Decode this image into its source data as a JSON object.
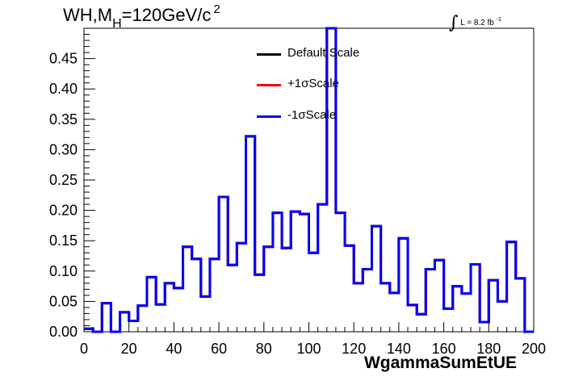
{
  "title": {
    "main": "WH,M",
    "sub": "H",
    "rest": "=120GeV/c",
    "sup": "2"
  },
  "lumi": {
    "integral": "∫",
    "text": "L = 8.2 fb",
    "sup": "-1"
  },
  "chart_data": {
    "type": "step-histogram",
    "xlabel": "WgammaSumEtUE",
    "ylabel": "",
    "xlim": [
      0,
      200
    ],
    "ylim": [
      0,
      0.5
    ],
    "xticks": [
      0,
      20,
      40,
      60,
      80,
      100,
      120,
      140,
      160,
      180,
      200
    ],
    "yticks": [
      "0.00",
      "0.05",
      "0.10",
      "0.15",
      "0.20",
      "0.25",
      "0.30",
      "0.35",
      "0.40",
      "0.45"
    ],
    "bin_width": 4,
    "bin_edges_start": 0,
    "legend_position": "top-center",
    "series": [
      {
        "name": "Default Scale",
        "color": "#000000",
        "values": [
          0.005,
          0.0,
          0.047,
          0.0,
          0.032,
          0.018,
          0.043,
          0.09,
          0.045,
          0.08,
          0.072,
          0.14,
          0.12,
          0.058,
          0.12,
          0.222,
          0.11,
          0.146,
          0.322,
          0.094,
          0.14,
          0.196,
          0.138,
          0.198,
          0.194,
          0.13,
          0.21,
          0.51,
          0.196,
          0.142,
          0.08,
          0.103,
          0.174,
          0.08,
          0.064,
          0.154,
          0.044,
          0.029,
          0.103,
          0.118,
          0.038,
          0.075,
          0.063,
          0.111,
          0.016,
          0.085,
          0.05,
          0.148,
          0.088,
          0.0
        ]
      },
      {
        "name": "+1σScale",
        "color": "#ff0000",
        "values": [
          0.005,
          0.0,
          0.047,
          0.0,
          0.032,
          0.018,
          0.043,
          0.09,
          0.045,
          0.08,
          0.072,
          0.14,
          0.12,
          0.058,
          0.12,
          0.222,
          0.11,
          0.146,
          0.322,
          0.094,
          0.14,
          0.196,
          0.138,
          0.198,
          0.194,
          0.13,
          0.21,
          0.51,
          0.196,
          0.142,
          0.08,
          0.103,
          0.174,
          0.08,
          0.064,
          0.154,
          0.044,
          0.029,
          0.103,
          0.118,
          0.038,
          0.075,
          0.063,
          0.111,
          0.016,
          0.085,
          0.05,
          0.148,
          0.088,
          0.0
        ]
      },
      {
        "name": "-1σScale",
        "color": "#0000ff",
        "values": [
          0.005,
          0.0,
          0.047,
          0.0,
          0.032,
          0.018,
          0.043,
          0.09,
          0.045,
          0.08,
          0.072,
          0.14,
          0.12,
          0.058,
          0.12,
          0.222,
          0.11,
          0.146,
          0.322,
          0.094,
          0.14,
          0.196,
          0.138,
          0.198,
          0.194,
          0.13,
          0.21,
          0.51,
          0.196,
          0.142,
          0.08,
          0.103,
          0.174,
          0.08,
          0.064,
          0.154,
          0.044,
          0.029,
          0.103,
          0.118,
          0.038,
          0.075,
          0.063,
          0.111,
          0.016,
          0.085,
          0.05,
          0.148,
          0.088,
          0.0
        ]
      }
    ]
  }
}
